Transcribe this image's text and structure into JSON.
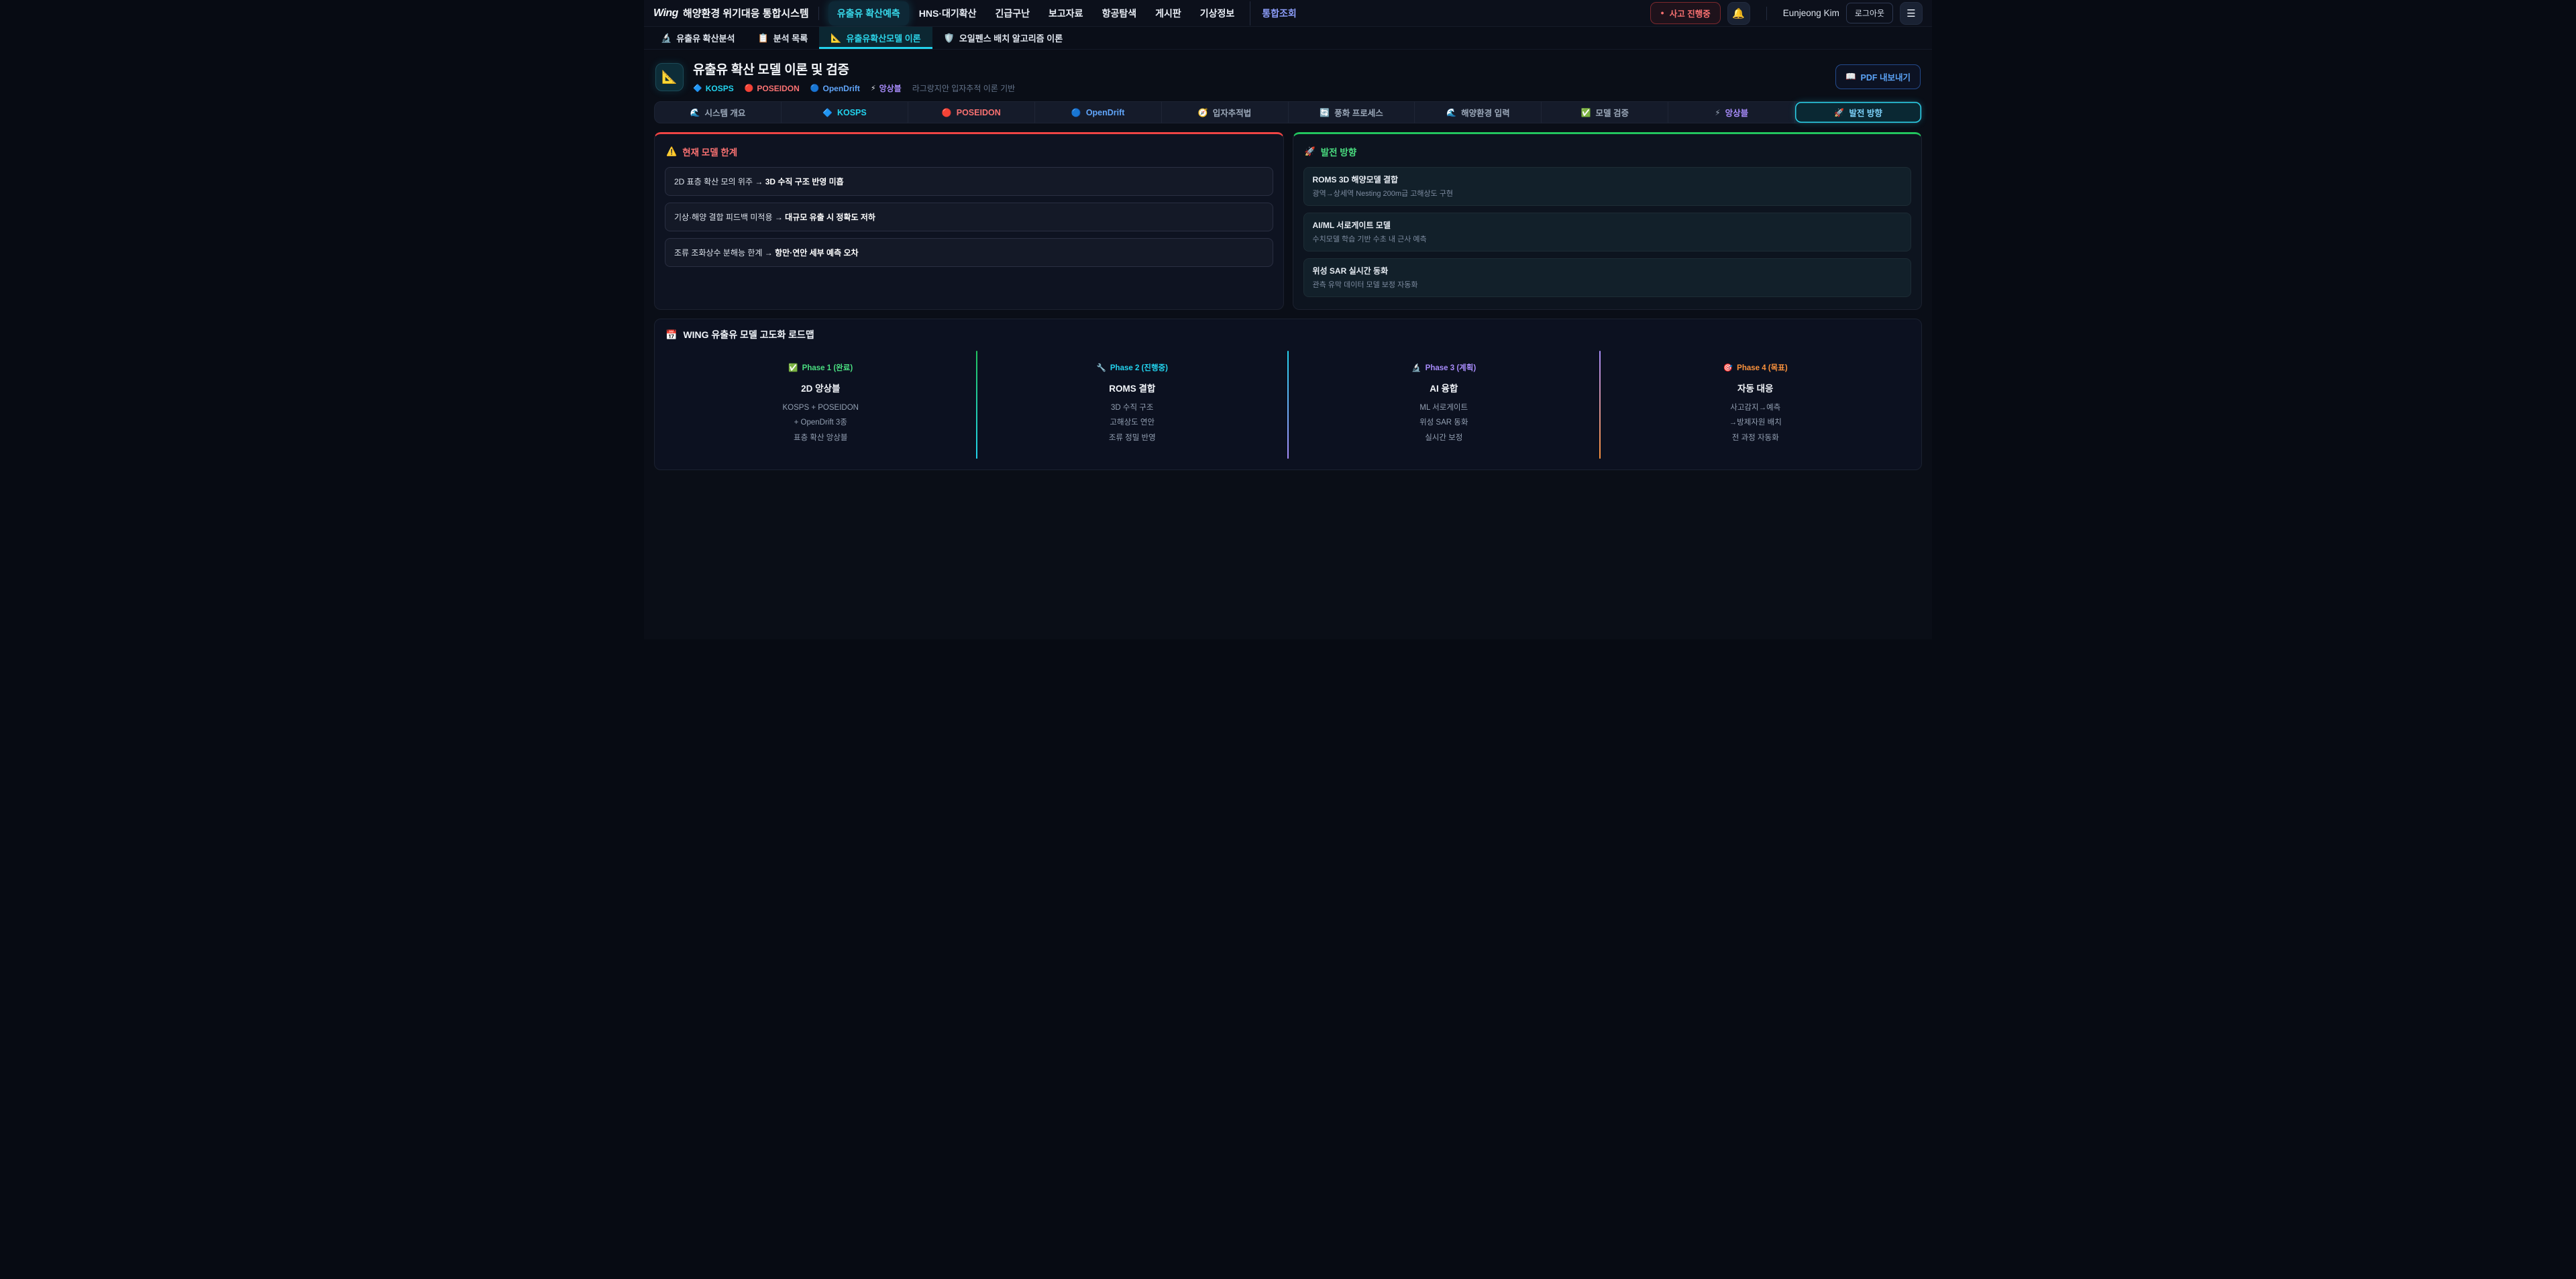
{
  "colors": {
    "accent_cyan": "#22d3ee",
    "accent_red": "#f87171",
    "accent_blue": "#60a5fa",
    "accent_purple": "#a78bfa",
    "accent_green": "#4ade80",
    "accent_orange": "#fb923c",
    "accent_indigo": "#8b9cf8",
    "limit_top_border": "#ef4444",
    "future_top_border": "#22c55e"
  },
  "topnav": {
    "logo_mark": "Wing",
    "logo_text": "해양환경 위기대응 통합시스템",
    "items": [
      {
        "label": "유출유 확산예측"
      },
      {
        "label": "HNS·대기확산"
      },
      {
        "label": "긴급구난"
      },
      {
        "label": "보고자료"
      },
      {
        "label": "항공탐색"
      },
      {
        "label": "게시판"
      },
      {
        "label": "기상정보"
      },
      {
        "label": "통합조회"
      }
    ],
    "incident_badge": {
      "dot": "●",
      "label": "사고 진행중"
    },
    "bell_icon": "🔔",
    "user_name": "Eunjeong Kim",
    "logout_label": "로그아웃",
    "menu_icon": "☰"
  },
  "subnav": {
    "items": [
      {
        "icon": "🔬",
        "label": "유출유 확산분석"
      },
      {
        "icon": "📋",
        "label": "분석 목록"
      },
      {
        "icon": "📐",
        "label": "유출유확산모델 이론"
      },
      {
        "icon": "🛡️",
        "label": "오일펜스 배치 알고리즘 이론"
      }
    ]
  },
  "header": {
    "icon": "📐",
    "title": "유출유 확산 모델 이론 및 검증",
    "badges": [
      {
        "icon": "🔷",
        "label": "KOSPS",
        "color": "#22d3ee"
      },
      {
        "icon": "🔴",
        "label": "POSEIDON",
        "color": "#f87171"
      },
      {
        "icon": "🔵",
        "label": "OpenDrift",
        "color": "#60a5fa"
      },
      {
        "icon": "⚡",
        "label": "앙상블",
        "color": "#a78bfa"
      }
    ],
    "subtitle": "라그랑지안 입자추적 이론 기반",
    "pdf_button": {
      "icon": "📖",
      "label": "PDF 내보내기"
    }
  },
  "section_tabs": [
    {
      "icon": "🌊",
      "label": "시스템 개요",
      "color": "#9aa7b8"
    },
    {
      "icon": "🔷",
      "label": "KOSPS",
      "color": "#22d3ee"
    },
    {
      "icon": "🔴",
      "label": "POSEIDON",
      "color": "#f87171"
    },
    {
      "icon": "🔵",
      "label": "OpenDrift",
      "color": "#60a5fa"
    },
    {
      "icon": "🧭",
      "label": "입자추적법",
      "color": "#9aa7b8"
    },
    {
      "icon": "🔄",
      "label": "풍화 프로세스",
      "color": "#9aa7b8"
    },
    {
      "icon": "🌊",
      "label": "해양환경 입력",
      "color": "#9aa7b8"
    },
    {
      "icon": "✅",
      "label": "모델 검증",
      "color": "#9aa7b8"
    },
    {
      "icon": "⚡",
      "label": "앙상블",
      "color": "#a78bfa"
    },
    {
      "icon": "🚀",
      "label": "발전 방향",
      "color": "#7dd3fc"
    }
  ],
  "limitations": {
    "icon": "⚠️",
    "title": "현재 모델 한계",
    "items": [
      {
        "plain": "2D 표층 확산 모의 위주 →",
        "bold": "3D 수직 구조 반영 미흡"
      },
      {
        "plain": "기상·해양 결합 피드백 미적용 →",
        "bold": "대규모 유출 시 정확도 저하"
      },
      {
        "plain": "조류 조화상수 분해능 한계 →",
        "bold": "항만·연안 세부 예측 오차"
      }
    ]
  },
  "future": {
    "icon": "🚀",
    "title": "발전 방향",
    "items": [
      {
        "title": "ROMS 3D 해양모델 결합",
        "desc": "광역→상세역 Nesting 200m급 고해상도 구현"
      },
      {
        "title": "AI/ML 서로게이트 모델",
        "desc": "수치모델 학습 기반 수초 내 근사 예측"
      },
      {
        "title": "위성 SAR 실시간 동화",
        "desc": "관측 유막 데이터 모델 보정 자동화"
      }
    ]
  },
  "roadmap": {
    "icon": "📅",
    "title": "WING 유출유 모델 고도화 로드맵",
    "phases": [
      {
        "icon": "✅",
        "label": "Phase 1 (완료)",
        "color": "#4ade80",
        "title": "2D 앙상블",
        "lines": [
          "KOSPS + POSEIDON",
          "+ OpenDrift 3종",
          "표층 확산 앙상블"
        ]
      },
      {
        "icon": "🔧",
        "label": "Phase 2 (진행중)",
        "color": "#22d3ee",
        "title": "ROMS 결합",
        "lines": [
          "3D 수직 구조",
          "고해상도 연안",
          "조류 정밀 반영"
        ]
      },
      {
        "icon": "🔬",
        "label": "Phase 3 (계획)",
        "color": "#a78bfa",
        "title": "AI 융합",
        "lines": [
          "ML 서로게이트",
          "위성 SAR 동화",
          "실시간 보정"
        ]
      },
      {
        "icon": "🎯",
        "label": "Phase 4 (목표)",
        "color": "#fb923c",
        "title": "자동 대응",
        "lines": [
          "사고감지→예측",
          "→방제자원 배치",
          "전 과정 자동화"
        ]
      }
    ]
  }
}
